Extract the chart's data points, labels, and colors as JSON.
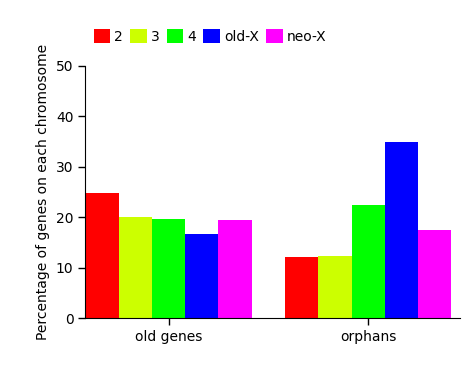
{
  "categories": [
    "old genes",
    "orphans"
  ],
  "series": [
    {
      "label": "2",
      "color": "#FF0000",
      "values": [
        24.8,
        12.2
      ]
    },
    {
      "label": "3",
      "color": "#CCFF00",
      "values": [
        20.0,
        12.3
      ]
    },
    {
      "label": "4",
      "color": "#00FF00",
      "values": [
        19.7,
        22.5
      ]
    },
    {
      "label": "old-X",
      "color": "#0000FF",
      "values": [
        16.8,
        35.0
      ]
    },
    {
      "label": "neo-X",
      "color": "#FF00FF",
      "values": [
        19.5,
        17.5
      ]
    }
  ],
  "ylabel": "Percentage of genes on each chromosome",
  "ylim": [
    0,
    50
  ],
  "yticks": [
    0,
    10,
    20,
    30,
    40,
    50
  ],
  "bar_width": 0.12,
  "legend_fontsize": 10,
  "tick_fontsize": 10,
  "label_fontsize": 10,
  "background_color": "#FFFFFF"
}
